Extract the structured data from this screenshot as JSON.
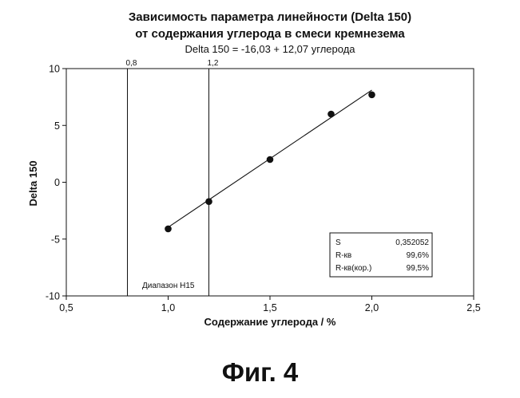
{
  "chart_data": {
    "type": "scatter",
    "title": [
      "Зависимость параметра линейности (Delta 150)",
      "от содержания углерода в смеси кремнезема"
    ],
    "subtitle": "Delta 150 = -16,03 + 12,07 углерода",
    "xlabel": "Содержание углерода / %",
    "ylabel": "Delta 150",
    "xlim": [
      0.5,
      2.5
    ],
    "ylim": [
      -10,
      10
    ],
    "xticks": [
      0.5,
      1.0,
      1.5,
      2.0,
      2.5
    ],
    "xtick_labels": [
      "0,5",
      "1,0",
      "1,5",
      "2,0",
      "2,5"
    ],
    "yticks": [
      -10,
      -5,
      0,
      5,
      10
    ],
    "ytick_labels": [
      "-10",
      "-5",
      "0",
      "5",
      "10"
    ],
    "grid": false,
    "points": [
      {
        "x": 1.0,
        "y": -4.1
      },
      {
        "x": 1.2,
        "y": -1.7
      },
      {
        "x": 1.5,
        "y": 2.0
      },
      {
        "x": 1.8,
        "y": 6.0
      },
      {
        "x": 2.0,
        "y": 7.7
      }
    ],
    "fit_line": {
      "intercept": -16.03,
      "slope": 12.07,
      "x_range": [
        1.0,
        2.0
      ]
    },
    "reference_lines": [
      {
        "x": 0.8,
        "label": "0,8"
      },
      {
        "x": 1.2,
        "label": "1,2"
      }
    ],
    "range_annotation": "Диапазон H15",
    "stats_table": [
      {
        "name": "S",
        "value": "0,352052"
      },
      {
        "name": "R-кв",
        "value": "99,6%"
      },
      {
        "name": "R-кв(кор.)",
        "value": "99,5%"
      }
    ]
  },
  "figure_label": "Фиг. 4"
}
